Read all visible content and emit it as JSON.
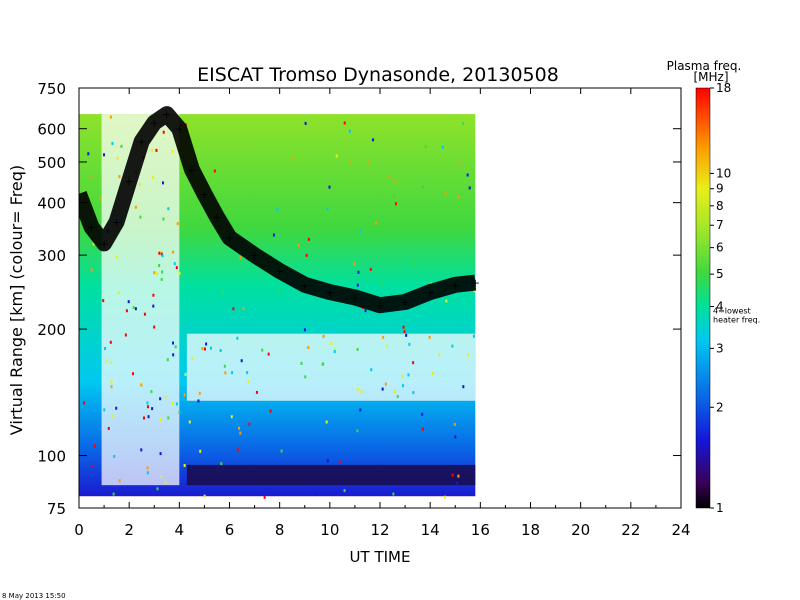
{
  "chart_data": {
    "type": "heatmap",
    "title": "EISCAT Tromso Dynasonde,  20130508",
    "xlabel": "UT TIME",
    "ylabel": "Virtual Range [km]    (colour= Freq)",
    "x_ticks": [
      0,
      2,
      4,
      6,
      8,
      10,
      12,
      14,
      16,
      18,
      20,
      22,
      24
    ],
    "xlim": [
      0,
      24
    ],
    "y_scale": "log",
    "y_ticks": [
      75,
      100,
      200,
      300,
      400,
      500,
      600,
      750
    ],
    "ylim": [
      75,
      750
    ],
    "data_extent_ut": [
      0,
      15.8
    ],
    "data_extent_km": [
      80,
      650
    ],
    "colorbar": {
      "title": "Plasma freq.",
      "unit": "[MHz]",
      "scale": "log",
      "range": [
        1,
        18
      ],
      "ticks": [
        1,
        2,
        3,
        4,
        5,
        6,
        7,
        8,
        9,
        10,
        18
      ],
      "annotation": "4=lowest heater freq."
    },
    "trace_label": "+",
    "echo_trace": {
      "description": "black F-region echo trace (virtual range km vs UT)",
      "ut": [
        0,
        0.5,
        1.0,
        1.5,
        2.0,
        2.5,
        3.0,
        3.5,
        4.0,
        4.5,
        5.0,
        5.5,
        6.0,
        7.0,
        8.0,
        9.0,
        10.0,
        11.0,
        12.0,
        13.0,
        14.0,
        15.0,
        15.8
      ],
      "km": [
        420,
        350,
        320,
        360,
        450,
        560,
        620,
        650,
        600,
        480,
        420,
        370,
        330,
        300,
        275,
        255,
        245,
        238,
        228,
        232,
        245,
        255,
        258
      ]
    }
  },
  "colors": {
    "scale": [
      "#000000",
      "#3a0058",
      "#1515d8",
      "#0a64e6",
      "#00c8f0",
      "#00e09a",
      "#3fd83f",
      "#9ee62a",
      "#e8ef1a",
      "#ff9a00",
      "#ff0000"
    ]
  },
  "footer": {
    "timestamp": "8 May 2013 15:50"
  }
}
